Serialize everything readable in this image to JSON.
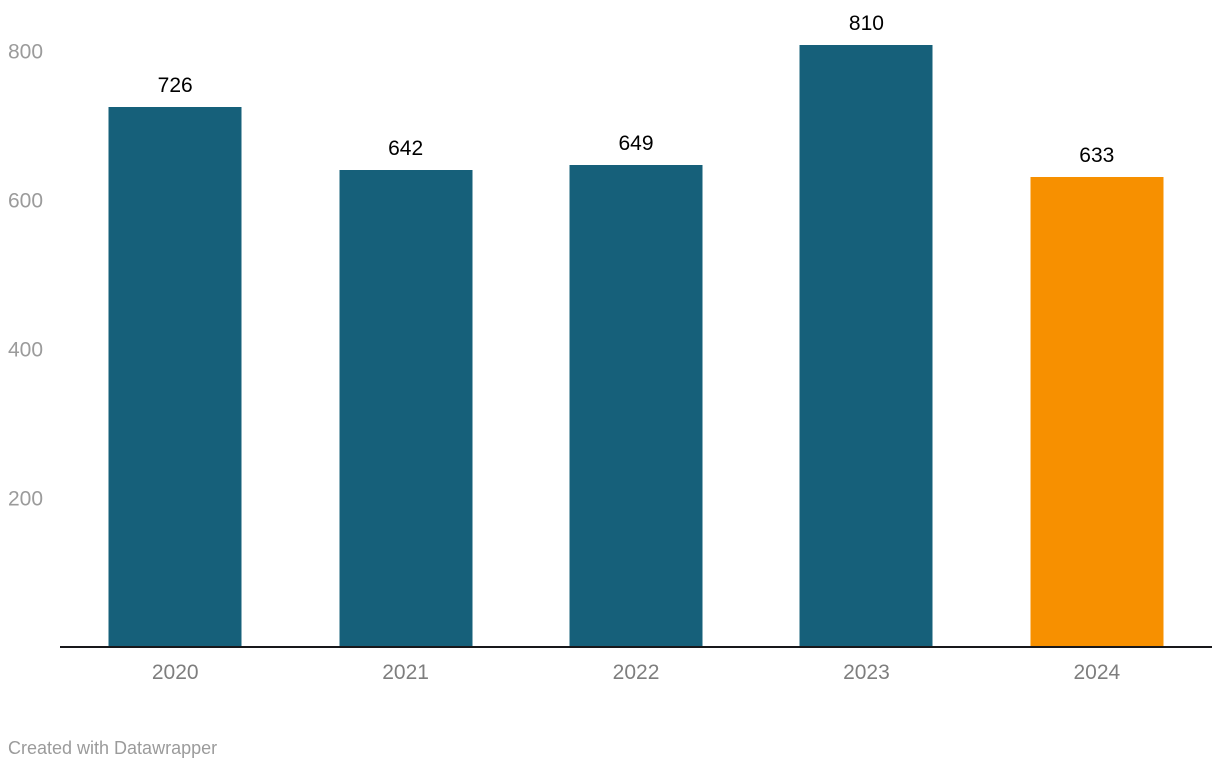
{
  "chart_data": {
    "type": "bar",
    "categories": [
      "2020",
      "2021",
      "2022",
      "2023",
      "2024"
    ],
    "values": [
      726,
      642,
      649,
      810,
      633
    ],
    "series_colors": [
      "#16607a",
      "#16607a",
      "#16607a",
      "#16607a",
      "#f79000"
    ],
    "bar_color": "#16607a",
    "highlight_color": "#f79000",
    "title": "",
    "xlabel": "",
    "ylabel": "",
    "ylim": [
      0,
      870
    ],
    "yticks": [
      200,
      400,
      600,
      800
    ],
    "grid": false,
    "value_labels": true,
    "legend": "none",
    "axis_color": "#18181b",
    "tick_label_color": "#9b9b9b",
    "value_label_color": "#000000"
  },
  "footer": {
    "credit": "Created with Datawrapper"
  }
}
